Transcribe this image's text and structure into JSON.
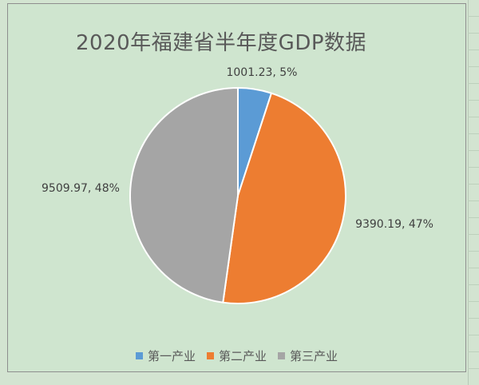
{
  "chart_data": {
    "type": "pie",
    "title": "2020年福建省半年度GDP数据",
    "categories": [
      "第一产业",
      "第二产业",
      "第三产业"
    ],
    "values": [
      1001.23,
      9390.19,
      9509.97
    ],
    "percentages": [
      5,
      47,
      48
    ],
    "data_labels": [
      "1001.23, 5%",
      "9390.19, 47%",
      "9509.97, 48%"
    ],
    "colors": [
      "#5b9bd5",
      "#ed7d31",
      "#a5a5a5"
    ],
    "legend_position": "bottom"
  }
}
